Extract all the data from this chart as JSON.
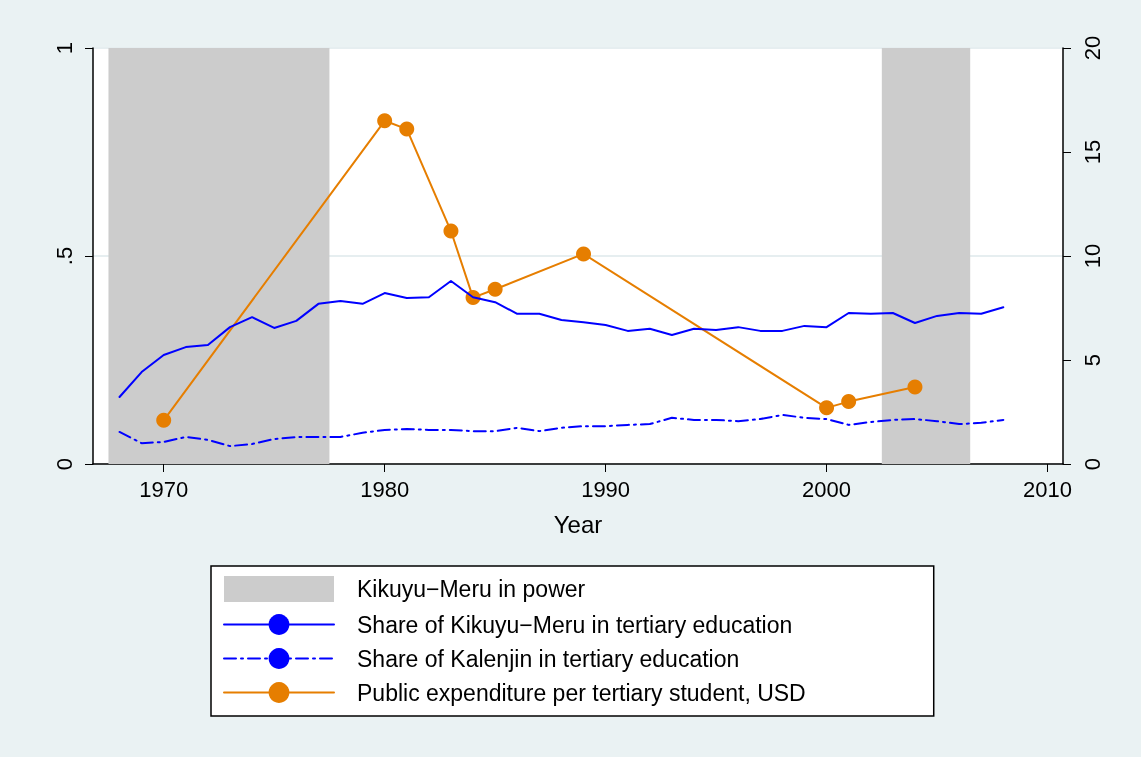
{
  "chart_data": {
    "type": "line",
    "xlabel": "Year",
    "x": [
      1968,
      1969,
      1970,
      1971,
      1972,
      1973,
      1974,
      1975,
      1976,
      1977,
      1978,
      1979,
      1980,
      1981,
      1982,
      1983,
      1984,
      1985,
      1986,
      1987,
      1988,
      1989,
      1990,
      1991,
      1992,
      1993,
      1994,
      1995,
      1996,
      1997,
      1998,
      1999,
      2000,
      2001,
      2002,
      2003,
      2004,
      2005,
      2006,
      2007,
      2008
    ],
    "series": [
      {
        "name": "Share of Kikuyu−Meru in tertiary education",
        "color": "#0000ff",
        "line_style": "solid",
        "marker": "none",
        "values": [
          0.161,
          0.221,
          0.262,
          0.281,
          0.286,
          0.329,
          0.353,
          0.327,
          0.344,
          0.385,
          0.392,
          0.385,
          0.411,
          0.399,
          0.401,
          0.44,
          0.401,
          0.389,
          0.361,
          0.361,
          0.346,
          0.341,
          0.334,
          0.32,
          0.325,
          0.31,
          0.325,
          0.322,
          0.329,
          0.32,
          0.32,
          0.332,
          0.329,
          0.363,
          0.361,
          0.363,
          0.339,
          0.356,
          0.363,
          0.361,
          0.377
        ]
      },
      {
        "name": "Share of Kalenjin in tertiary education",
        "color": "#0000ff",
        "line_style": "dashed",
        "marker": "none",
        "values": [
          0.077,
          0.05,
          0.053,
          0.065,
          0.058,
          0.043,
          0.048,
          0.06,
          0.065,
          0.065,
          0.065,
          0.075,
          0.082,
          0.084,
          0.082,
          0.082,
          0.079,
          0.079,
          0.087,
          0.079,
          0.087,
          0.091,
          0.091,
          0.094,
          0.096,
          0.111,
          0.106,
          0.106,
          0.103,
          0.108,
          0.118,
          0.111,
          0.108,
          0.094,
          0.101,
          0.106,
          0.108,
          0.103,
          0.096,
          0.099,
          0.106
        ]
      },
      {
        "name": "Public expenditure per tertiary student, USD",
        "color": "#e67e00",
        "line_style": "solid",
        "marker": "circle",
        "axis": "y2",
        "x": [
          1970,
          1980,
          1981,
          1983,
          1984,
          1985,
          1989,
          2000,
          2001,
          2004
        ],
        "values": [
          2.1,
          16.5,
          16.1,
          11.2,
          8.0,
          8.4,
          10.1,
          2.7,
          3.0,
          3.7
        ]
      }
    ],
    "bands": [
      {
        "axis": "x",
        "from": 1967.5,
        "to": 1977.5,
        "label": "Kikuyu−Meru in power",
        "color": "#cccccc"
      },
      {
        "axis": "x",
        "from": 2002.5,
        "to": 2006.5,
        "color": "#cccccc"
      }
    ],
    "xlim": [
      1966.8,
      2010.7
    ],
    "xticks": [
      1970,
      1980,
      1990,
      2000,
      2010
    ],
    "ylim": [
      0,
      1
    ],
    "yticks": [
      0,
      {
        "value": 0.5,
        "label": ".5"
      },
      1
    ],
    "y2lim": [
      0,
      20
    ],
    "y2ticks": [
      0,
      5,
      10,
      15,
      20
    ],
    "grid": "y",
    "legend": "bottom"
  }
}
